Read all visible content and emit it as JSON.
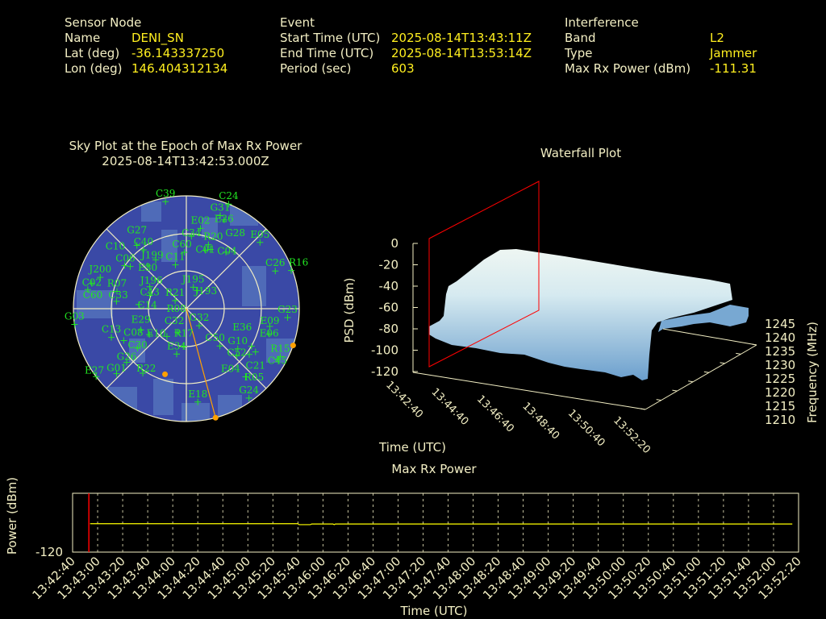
{
  "header": {
    "sensor": {
      "heading": "Sensor Node",
      "name_label": "Name",
      "name": "DENI_SN",
      "lat_label": "Lat (deg)",
      "lat": "-36.143337250",
      "lon_label": "Lon (deg)",
      "lon": "146.404312134"
    },
    "event": {
      "heading": "Event",
      "start_label": "Start Time (UTC)",
      "start": "2025-08-14T13:43:11Z",
      "end_label": "End Time (UTC)",
      "end": "2025-08-14T13:53:14Z",
      "period_label": "Period (sec)",
      "period": "603"
    },
    "interference": {
      "heading": "Interference",
      "band_label": "Band",
      "band": "L2",
      "type_label": "Type",
      "type": "Jammer",
      "power_label": "Max Rx Power (dBm)",
      "power": "-111.31"
    }
  },
  "skyplot": {
    "title": "Sky Plot at the Epoch of Max Rx Power",
    "subtitle": "2025-08-14T13:42:53.000Z",
    "colors": {
      "background": "#3a49a6",
      "patch": "#4f6bb8",
      "satellite": "#22e622",
      "grid": "#f3efc4",
      "interference": "#ffa000"
    },
    "satellites": [
      {
        "id": "C39",
        "az": 349,
        "el": 3
      },
      {
        "id": "C24",
        "az": 22,
        "el": 0
      },
      {
        "id": "G31",
        "az": 20,
        "el": 11
      },
      {
        "id": "E26",
        "az": 23,
        "el": 13
      },
      {
        "id": "E02",
        "az": 10,
        "el": 25
      },
      {
        "id": "C34",
        "az": 4,
        "el": 32
      },
      {
        "id": "R20",
        "az": 19,
        "el": 36
      },
      {
        "id": "C01",
        "az": 18,
        "el": 41
      },
      {
        "id": "C04",
        "az": 22,
        "el": 39
      },
      {
        "id": "G28",
        "az": 35,
        "el": 35
      },
      {
        "id": "E05",
        "az": 48,
        "el": 11
      },
      {
        "id": "C26",
        "az": 67,
        "el": 13
      },
      {
        "id": "R16",
        "az": 70,
        "el": 1
      },
      {
        "id": "G23",
        "az": 95,
        "el": 9
      },
      {
        "id": "E09",
        "az": 102,
        "el": 22
      },
      {
        "id": "E06",
        "az": 107,
        "el": 21
      },
      {
        "id": "R15",
        "az": 117,
        "el": 6
      },
      {
        "id": "C45",
        "az": 119,
        "el": 7
      },
      {
        "id": "G10",
        "az": 128,
        "el": 38
      },
      {
        "id": "E36",
        "az": 120,
        "el": 30
      },
      {
        "id": "C52",
        "az": 133,
        "el": 35
      },
      {
        "id": "C50",
        "az": 138,
        "el": 50
      },
      {
        "id": "C21",
        "az": 122,
        "el": 25
      },
      {
        "id": "E04",
        "az": 126,
        "el": 28
      },
      {
        "id": "R05",
        "az": 139,
        "el": 18
      },
      {
        "id": "G24",
        "az": 145,
        "el": 3
      },
      {
        "id": "E18",
        "az": 173,
        "el": 15
      },
      {
        "id": "E34",
        "az": 192,
        "el": 53
      },
      {
        "id": "R17",
        "az": 184,
        "el": 60
      },
      {
        "id": "G32",
        "az": 143,
        "el": 73
      },
      {
        "id": "C32",
        "az": 200,
        "el": 70
      },
      {
        "id": "R21",
        "az": 306,
        "el": 79
      },
      {
        "id": "J195",
        "az": 18,
        "el": 72
      },
      {
        "id": "J193",
        "az": 31,
        "el": 73
      },
      {
        "id": "C11",
        "az": 346,
        "el": 54
      },
      {
        "id": "C60",
        "az": 358,
        "el": 45
      },
      {
        "id": "J199",
        "az": 328,
        "el": 44
      },
      {
        "id": "E30",
        "az": 318,
        "el": 44
      },
      {
        "id": "C40",
        "az": 324,
        "el": 32
      },
      {
        "id": "G27",
        "az": 322,
        "el": 26
      },
      {
        "id": "C06",
        "az": 307,
        "el": 34
      },
      {
        "id": "J200",
        "az": 290,
        "el": 17
      },
      {
        "id": "C10",
        "az": 305,
        "el": 30
      },
      {
        "id": "C02",
        "az": 285,
        "el": 12
      },
      {
        "id": "C60",
        "az": 281,
        "el": 10
      },
      {
        "id": "R07",
        "az": 284,
        "el": 33
      },
      {
        "id": "C33",
        "az": 276,
        "el": 34
      },
      {
        "id": "J196",
        "az": 301,
        "el": 56
      },
      {
        "id": "C43",
        "az": 290,
        "el": 59
      },
      {
        "id": "C14",
        "az": 275,
        "el": 52
      },
      {
        "id": "G03",
        "az": 262,
        "el": 0
      },
      {
        "id": "C13",
        "az": 249,
        "el": 26
      },
      {
        "id": "C08",
        "az": 243,
        "el": 34
      },
      {
        "id": "E29",
        "az": 245,
        "el": 50
      },
      {
        "id": "C30",
        "az": 231,
        "el": 40
      },
      {
        "id": "E10",
        "az": 235,
        "el": 54
      },
      {
        "id": "R08",
        "az": 215,
        "el": 63
      },
      {
        "id": "G26",
        "az": 228,
        "el": 26
      },
      {
        "id": "G01",
        "az": 227,
        "el": 14
      },
      {
        "id": "R22",
        "az": 214,
        "el": 28
      },
      {
        "id": "E27",
        "az": 233,
        "el": 0
      }
    ],
    "interference_points": [
      {
        "az": 198,
        "el": 35
      },
      {
        "az": 109,
        "el": 0
      },
      {
        "az": 165,
        "el": 0
      }
    ]
  },
  "waterfall": {
    "title": "Waterfall Plot",
    "zlabel": "PSD (dBm)",
    "zticks": [
      "0",
      "-20",
      "-40",
      "-60",
      "-80",
      "-100",
      "-120"
    ],
    "xlabel": "Time (UTC)",
    "ylabel": "Frequency (MHz)",
    "yticks": [
      "1210",
      "1215",
      "1220",
      "1225",
      "1230",
      "1235",
      "1240",
      "1245"
    ],
    "colors": {
      "high": "#eef6f2",
      "low": "#6b9fcd",
      "marker_plane": "#ff0000",
      "axis": "#f3efc4"
    }
  },
  "maxpower": {
    "title": "Max Rx Power",
    "ylabel": "Power (dBm)",
    "ytick": "-120",
    "xlabel": "Time (UTC)",
    "xticks": [
      "13:42:40",
      "13:43:00",
      "13:43:20",
      "13:43:40",
      "13:44:00",
      "13:44:20",
      "13:44:40",
      "13:45:00",
      "13:45:20",
      "13:45:40",
      "13:46:00",
      "13:46:20",
      "13:46:40",
      "13:47:00",
      "13:47:20",
      "13:47:40",
      "13:48:00",
      "13:48:20",
      "13:48:40",
      "13:49:00",
      "13:49:20",
      "13:49:40",
      "13:50:00",
      "13:50:20",
      "13:50:40",
      "13:51:00",
      "13:51:20",
      "13:51:40",
      "13:52:00",
      "13:52:20"
    ],
    "marker_time": "13:42:53",
    "colors": {
      "line": "#ffff00",
      "marker": "#ff0000",
      "frame": "#f3efc4"
    },
    "series": [
      {
        "t": "13:42:54",
        "v": -111.3
      },
      {
        "t": "13:45:40",
        "v": -111.3
      },
      {
        "t": "13:45:41",
        "v": -111.6
      },
      {
        "t": "13:45:50",
        "v": -111.6
      },
      {
        "t": "13:45:51",
        "v": -111.4
      },
      {
        "t": "13:46:08",
        "v": -111.4
      },
      {
        "t": "13:46:09",
        "v": -111.6
      },
      {
        "t": "13:46:10",
        "v": -111.4
      },
      {
        "t": "13:52:15",
        "v": -111.4
      }
    ]
  }
}
